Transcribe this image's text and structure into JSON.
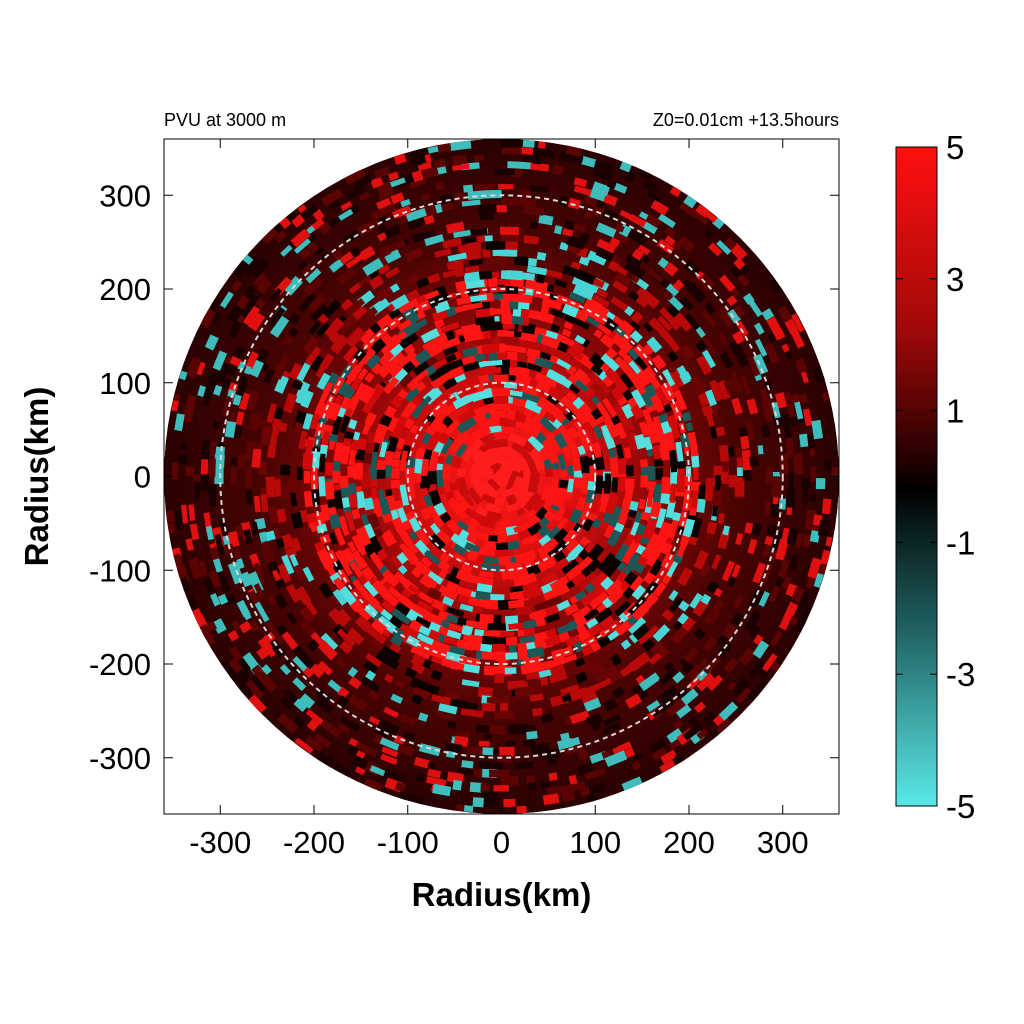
{
  "chart_data": {
    "type": "heatmap",
    "title_left": "PVU at  3000 m",
    "title_right": "Z0=0.01cm  +13.5hours",
    "xlabel": "Radius(km)",
    "ylabel": "Radius(km)",
    "xlim": [
      -360,
      360
    ],
    "ylim": [
      -360,
      360
    ],
    "x_ticks": [
      -300,
      -200,
      -100,
      0,
      100,
      200,
      300
    ],
    "y_ticks": [
      300,
      200,
      100,
      0,
      -100,
      -200,
      -300
    ],
    "x_tick_labels": [
      "-300",
      "-200",
      "-100",
      "0",
      "100",
      "200",
      "300"
    ],
    "y_tick_labels": [
      "300",
      "200",
      "100",
      "0",
      "-100",
      "-200",
      "-300"
    ],
    "domain_radius_km": 360,
    "reference_circles_km": [
      100,
      200,
      300
    ],
    "colorbar": {
      "min": -5,
      "max": 5,
      "ticks": [
        5,
        3,
        1,
        -1,
        -3,
        -5
      ],
      "tick_labels": [
        "5",
        "3",
        "1",
        "-1",
        "-3",
        "-5"
      ],
      "colors": {
        "max": "#ff1010",
        "mid": "#000000",
        "min": "#5ae8e8"
      }
    },
    "field_description": {
      "center": [
        0,
        0
      ],
      "positive_core_value": 5,
      "dominant_sign": "positive"
    }
  }
}
